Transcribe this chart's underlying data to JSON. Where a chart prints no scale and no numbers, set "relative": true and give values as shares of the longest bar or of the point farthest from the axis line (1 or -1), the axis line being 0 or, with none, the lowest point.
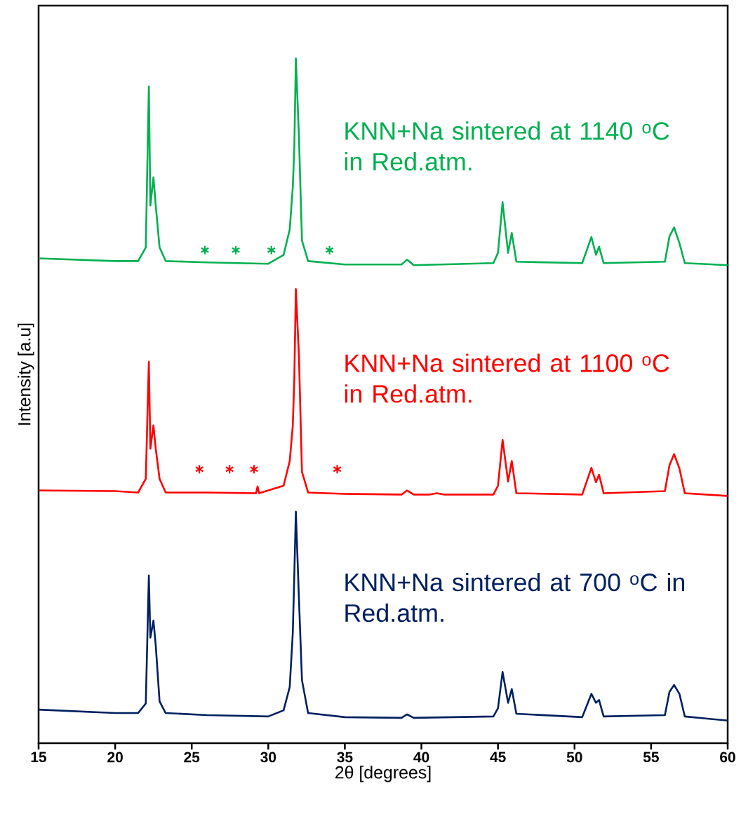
{
  "chart_data": {
    "type": "line",
    "relative": true,
    "xlabel": "2θ [degrees]",
    "ylabel": "Intensity [a.u]",
    "xlim": [
      15,
      60
    ],
    "xticks": [
      15,
      20,
      25,
      30,
      35,
      40,
      45,
      50,
      55,
      60
    ],
    "tick_labels": "x",
    "series": [
      {
        "name": "KNN+Na sintered at 1140 $^{o}$C in Red.atm.",
        "color": "#00b050",
        "x": [
          15,
          20,
          21.5,
          22.0,
          22.2,
          22.3,
          22.5,
          22.65,
          22.9,
          23.3,
          26,
          30,
          31.0,
          31.4,
          31.6,
          31.7,
          31.8,
          32.0,
          32.2,
          32.6,
          35,
          38.7,
          39.06,
          39.5,
          44.7,
          45.0,
          45.3,
          45.66,
          45.9,
          46.2,
          50.5,
          51.1,
          51.4,
          51.6,
          51.9,
          55.9,
          56.2,
          56.5,
          56.85,
          57.2,
          60
        ],
        "values": [
          0.708,
          0.704,
          0.704,
          0.724,
          0.959,
          0.785,
          0.826,
          0.785,
          0.724,
          0.704,
          0.702,
          0.7,
          0.713,
          0.75,
          0.812,
          0.87,
          1.0,
          0.887,
          0.734,
          0.704,
          0.699,
          0.699,
          0.706,
          0.698,
          0.701,
          0.716,
          0.79,
          0.716,
          0.745,
          0.703,
          0.701,
          0.739,
          0.713,
          0.725,
          0.701,
          0.703,
          0.74,
          0.753,
          0.73,
          0.701,
          0.698
        ]
      },
      {
        "name": "KNN+Na sintered at 1100 $^{o}$C in Red.atm.",
        "color": "#ff0000",
        "x": [
          15,
          20,
          21.5,
          22.0,
          22.2,
          22.3,
          22.5,
          22.65,
          22.9,
          23.3,
          26,
          29.2,
          29.3,
          29.4,
          31.0,
          31.4,
          31.6,
          31.7,
          31.8,
          32.0,
          32.2,
          32.6,
          35,
          38.7,
          39.06,
          39.5,
          40.5,
          41.0,
          41.5,
          44.7,
          45.0,
          45.3,
          45.66,
          45.9,
          46.2,
          50.5,
          51.1,
          51.4,
          51.6,
          51.9,
          55.9,
          56.2,
          56.5,
          56.85,
          57.2,
          60
        ],
        "values": [
          0.369,
          0.368,
          0.366,
          0.386,
          0.557,
          0.43,
          0.464,
          0.43,
          0.386,
          0.366,
          0.366,
          0.365,
          0.375,
          0.365,
          0.376,
          0.412,
          0.464,
          0.532,
          0.663,
          0.566,
          0.396,
          0.366,
          0.364,
          0.363,
          0.369,
          0.363,
          0.363,
          0.365,
          0.363,
          0.363,
          0.376,
          0.443,
          0.382,
          0.412,
          0.365,
          0.363,
          0.402,
          0.381,
          0.392,
          0.365,
          0.368,
          0.406,
          0.422,
          0.401,
          0.365,
          0.361
        ]
      },
      {
        "name": "KNN+Na sintered at 700 $^{o}$C in Red.atm.",
        "color": "#002060",
        "x": [
          15,
          20,
          21.5,
          22.0,
          22.2,
          22.3,
          22.5,
          22.65,
          22.9,
          23.3,
          26,
          30,
          31.0,
          31.4,
          31.6,
          31.7,
          31.8,
          32.0,
          32.2,
          32.6,
          35,
          38.7,
          39.06,
          39.5,
          44.7,
          45.0,
          45.3,
          45.66,
          45.9,
          46.2,
          50.5,
          51.1,
          51.4,
          51.6,
          51.9,
          55.9,
          56.2,
          56.5,
          56.85,
          57.2,
          60
        ],
        "values": [
          0.049,
          0.044,
          0.044,
          0.058,
          0.245,
          0.154,
          0.179,
          0.143,
          0.061,
          0.044,
          0.041,
          0.039,
          0.048,
          0.082,
          0.161,
          0.246,
          0.338,
          0.212,
          0.092,
          0.044,
          0.038,
          0.037,
          0.042,
          0.037,
          0.039,
          0.051,
          0.104,
          0.059,
          0.079,
          0.043,
          0.038,
          0.072,
          0.059,
          0.063,
          0.039,
          0.041,
          0.075,
          0.085,
          0.072,
          0.039,
          0.033
        ]
      },
      {
        "type": "scatter",
        "marker": "cross",
        "color": "#00b050",
        "x": [
          25.86,
          27.88,
          30.2,
          34.0
        ],
        "values": [
          0.72,
          0.72,
          0.72,
          0.72
        ]
      },
      {
        "type": "scatter",
        "marker": "cross",
        "color": "#ff0000",
        "x": [
          25.5,
          27.47,
          29.07,
          34.5
        ],
        "values": [
          0.4,
          0.4,
          0.4,
          0.4
        ]
      }
    ]
  }
}
